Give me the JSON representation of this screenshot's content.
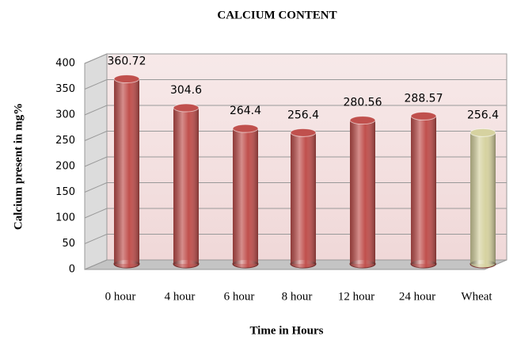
{
  "chart_data": {
    "type": "bar",
    "title": "CALCIUM CONTENT",
    "xlabel": "Time in Hours",
    "ylabel": "Calcium present in mg%",
    "categories": [
      "0 hour",
      "4 hour",
      "6 hour",
      "8 hour",
      "12 hour",
      "24 hour",
      "Wheat"
    ],
    "values": [
      360.72,
      304.6,
      264.4,
      256.4,
      280.56,
      288.57,
      256.4
    ],
    "colors": [
      "#c0504d",
      "#c0504d",
      "#c0504d",
      "#c0504d",
      "#c0504d",
      "#c0504d",
      "#d6d2a0"
    ],
    "ylim": [
      0,
      400
    ],
    "yticks": [
      0,
      50,
      100,
      150,
      200,
      250,
      300,
      350,
      400
    ],
    "grid": true
  }
}
